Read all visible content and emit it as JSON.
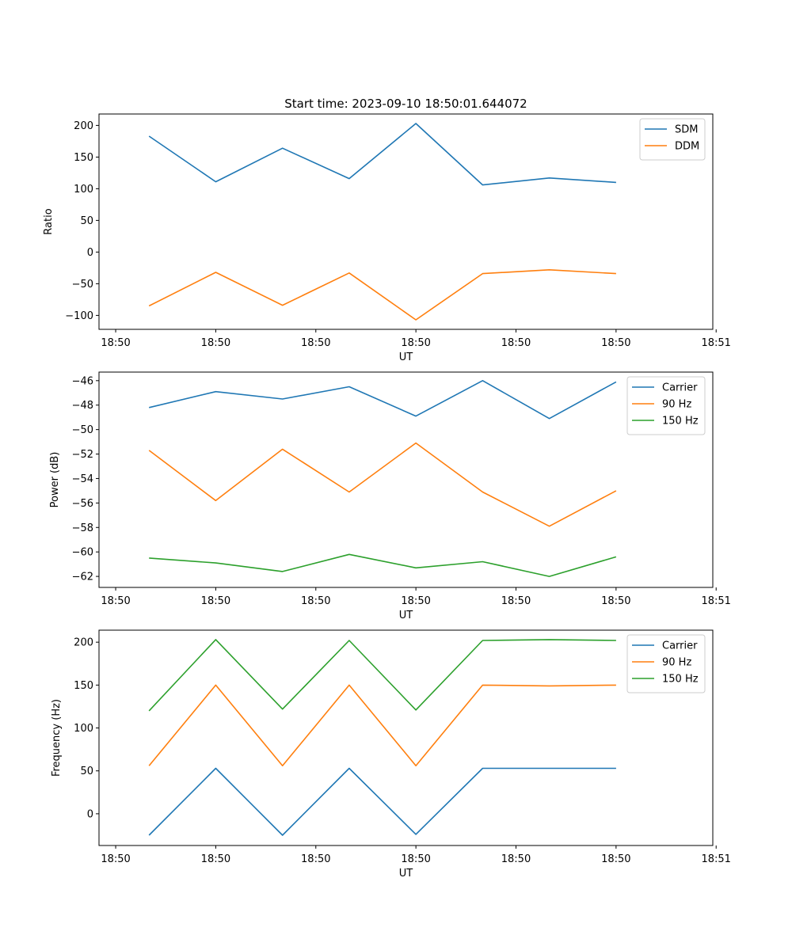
{
  "chart_data": [
    {
      "type": "line",
      "title": "Start time: 2023-09-10 18:50:01.644072",
      "xlabel": "UT",
      "ylabel": "Ratio",
      "ylim": [
        -122,
        218
      ],
      "yticks": [
        200,
        150,
        100,
        50,
        0,
        -50,
        -100
      ],
      "ytick_labels": [
        "200",
        "150",
        "100",
        "50",
        "0",
        "−50",
        "−100"
      ],
      "xlim": [
        -0.75,
        8.45
      ],
      "xticks": [
        -0.5,
        1.0,
        2.5,
        4.0,
        5.5,
        7.0,
        8.5
      ],
      "xtick_labels": [
        "18:50",
        "18:50",
        "18:50",
        "18:50",
        "18:50",
        "18:50",
        "18:51"
      ],
      "x": [
        0,
        1,
        2,
        3,
        4,
        5,
        6,
        7
      ],
      "legend_position": "top-right",
      "series": [
        {
          "name": "SDM",
          "color": "#1f77b4",
          "values": [
            183,
            111,
            164,
            116,
            203,
            106,
            117,
            110
          ]
        },
        {
          "name": "DDM",
          "color": "#ff7f0e",
          "values": [
            -85,
            -32,
            -84,
            -33,
            -107,
            -34,
            -28,
            -34
          ]
        }
      ]
    },
    {
      "type": "line",
      "title": "",
      "xlabel": "UT",
      "ylabel": "Power (dB)",
      "ylim": [
        -62.9,
        -45.3
      ],
      "yticks": [
        -46,
        -48,
        -50,
        -52,
        -54,
        -56,
        -58,
        -60,
        -62
      ],
      "ytick_labels": [
        "−46",
        "−48",
        "−50",
        "−52",
        "−54",
        "−56",
        "−58",
        "−60",
        "−62"
      ],
      "xlim": [
        -0.75,
        8.45
      ],
      "xticks": [
        -0.5,
        1.0,
        2.5,
        4.0,
        5.5,
        7.0,
        8.5
      ],
      "xtick_labels": [
        "18:50",
        "18:50",
        "18:50",
        "18:50",
        "18:50",
        "18:50",
        "18:51"
      ],
      "x": [
        0,
        1,
        2,
        3,
        4,
        5,
        6,
        7
      ],
      "legend_position": "top-right",
      "series": [
        {
          "name": "Carrier",
          "color": "#1f77b4",
          "values": [
            -48.2,
            -46.9,
            -47.5,
            -46.5,
            -48.9,
            -46.0,
            -49.1,
            -46.1
          ]
        },
        {
          "name": "90 Hz",
          "color": "#ff7f0e",
          "values": [
            -51.7,
            -55.8,
            -51.6,
            -55.1,
            -51.1,
            -55.1,
            -57.9,
            -55.0
          ]
        },
        {
          "name": "150 Hz",
          "color": "#2ca02c",
          "values": [
            -60.5,
            -60.9,
            -61.6,
            -60.2,
            -61.3,
            -60.8,
            -62.0,
            -60.4
          ]
        }
      ]
    },
    {
      "type": "line",
      "title": "",
      "xlabel": "UT",
      "ylabel": "Frequency (Hz)",
      "ylim": [
        -37,
        214
      ],
      "yticks": [
        200,
        150,
        100,
        50,
        0
      ],
      "ytick_labels": [
        "200",
        "150",
        "100",
        "50",
        "0"
      ],
      "xlim": [
        -0.75,
        8.45
      ],
      "xticks": [
        -0.5,
        1.0,
        2.5,
        4.0,
        5.5,
        7.0,
        8.5
      ],
      "xtick_labels": [
        "18:50",
        "18:50",
        "18:50",
        "18:50",
        "18:50",
        "18:50",
        "18:51"
      ],
      "x": [
        0,
        1,
        2,
        3,
        4,
        5,
        6,
        7
      ],
      "legend_position": "top-right",
      "series": [
        {
          "name": "Carrier",
          "color": "#1f77b4",
          "values": [
            -25,
            53,
            -25,
            53,
            -24,
            53,
            53,
            53
          ]
        },
        {
          "name": "90 Hz",
          "color": "#ff7f0e",
          "values": [
            56,
            150,
            56,
            150,
            56,
            150,
            149,
            150
          ]
        },
        {
          "name": "150 Hz",
          "color": "#2ca02c",
          "values": [
            120,
            203,
            122,
            202,
            121,
            202,
            203,
            202
          ]
        }
      ]
    }
  ]
}
